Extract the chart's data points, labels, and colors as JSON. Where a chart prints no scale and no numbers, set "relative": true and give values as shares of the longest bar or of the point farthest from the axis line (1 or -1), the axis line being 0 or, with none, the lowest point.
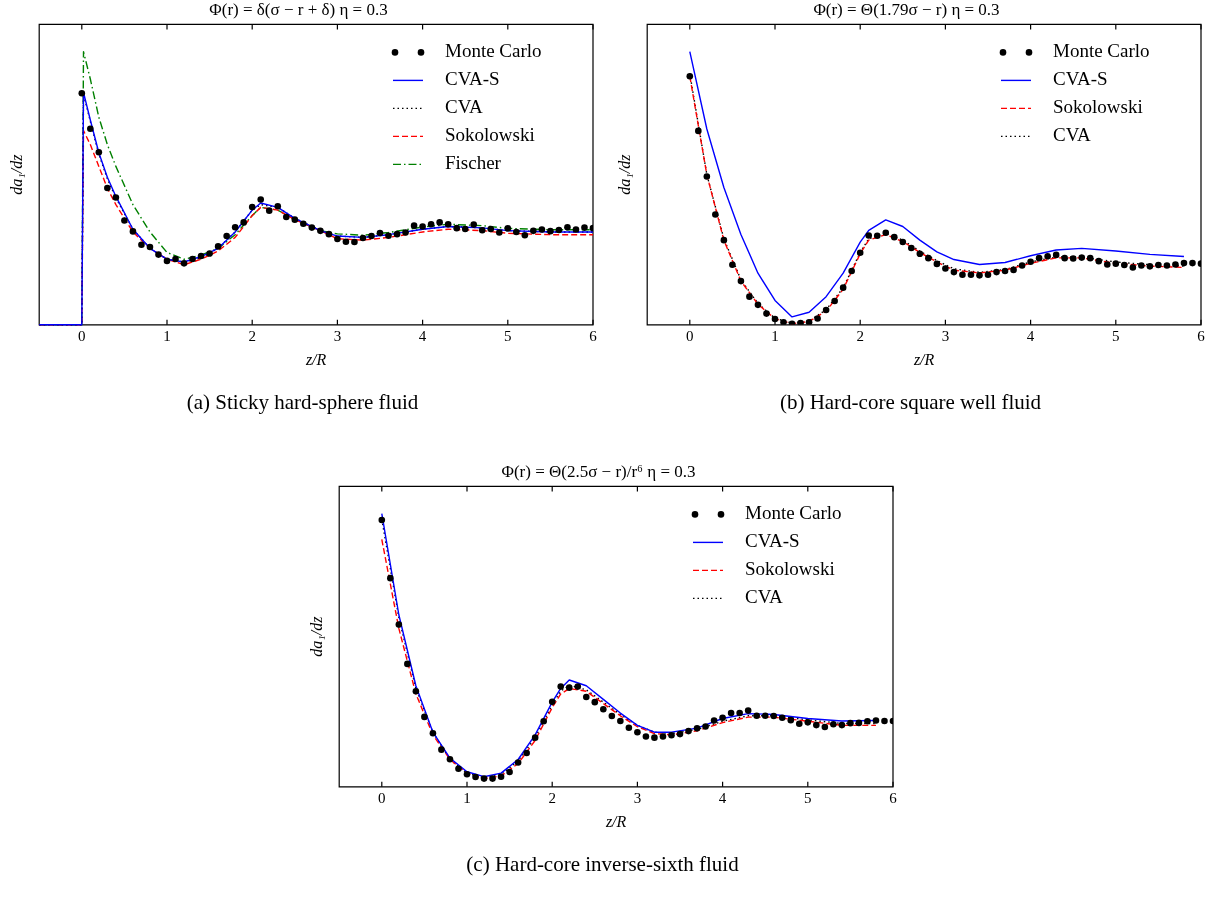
{
  "chart_data": [
    {
      "type": "line",
      "title": "Φ(r) = δ(σ − r + δ) η = 0.3",
      "xlabel": "z/R",
      "ylabel": "da₁/dz",
      "annotations": [
        "(a) Sticky hard-sphere fluid"
      ],
      "relative": true,
      "xlim": [
        -0.5,
        6
      ],
      "xticks": [
        0,
        1,
        2,
        3,
        4,
        5,
        6
      ],
      "legend": "top right",
      "series": [
        {
          "name": "Monte Carlo",
          "type": "scatter",
          "marker": "circle",
          "color": "#000000",
          "x": [
            0,
            0.1,
            0.2,
            0.3,
            0.4,
            0.5,
            0.6,
            0.7,
            0.8,
            0.9,
            1,
            1.1,
            1.2,
            1.3,
            1.4,
            1.5,
            1.6,
            1.7,
            1.8,
            1.9,
            2,
            2.1,
            2.2,
            2.3,
            2.4,
            2.5,
            2.6,
            2.7,
            2.8,
            2.9,
            3,
            3.1,
            3.2,
            3.3,
            3.4,
            3.5,
            3.6,
            3.7,
            3.8,
            3.9,
            4,
            4.1,
            4.2,
            4.3,
            4.4,
            4.5,
            4.6,
            4.7,
            4.8,
            4.9,
            5,
            5.1,
            5.2,
            5.3,
            5.4,
            5.5,
            5.6,
            5.7,
            5.8,
            5.9,
            6
          ],
          "values": [
            0.848,
            0.718,
            0.632,
            0.501,
            0.466,
            0.382,
            0.342,
            0.293,
            0.285,
            0.257,
            0.234,
            0.241,
            0.225,
            0.241,
            0.252,
            0.261,
            0.287,
            0.325,
            0.357,
            0.375,
            0.431,
            0.459,
            0.418,
            0.434,
            0.395,
            0.385,
            0.37,
            0.356,
            0.344,
            0.332,
            0.314,
            0.304,
            0.303,
            0.318,
            0.325,
            0.336,
            0.326,
            0.332,
            0.338,
            0.363,
            0.36,
            0.368,
            0.375,
            0.368,
            0.354,
            0.351,
            0.367,
            0.346,
            0.351,
            0.338,
            0.353,
            0.34,
            0.328,
            0.344,
            0.349,
            0.343,
            0.347,
            0.357,
            0.349,
            0.356,
            0.354
          ]
        },
        {
          "name": "CVA-S",
          "line_style": "solid",
          "color": "#0000ff",
          "x": [
            -0.5,
            0,
            0.02,
            0.1,
            0.2,
            0.3,
            0.4,
            0.6,
            0.8,
            1,
            1.2,
            1.4,
            1.6,
            1.8,
            2,
            2.1,
            2.3,
            2.5,
            2.8,
            3,
            3.3,
            3.6,
            4,
            4.3,
            4.7,
            5,
            5.5,
            6
          ],
          "values": [
            0,
            0,
            0.851,
            0.75,
            0.63,
            0.54,
            0.47,
            0.35,
            0.28,
            0.24,
            0.23,
            0.25,
            0.28,
            0.34,
            0.42,
            0.446,
            0.43,
            0.39,
            0.345,
            0.325,
            0.32,
            0.33,
            0.35,
            0.36,
            0.355,
            0.345,
            0.34,
            0.34
          ]
        },
        {
          "name": "CVA",
          "line_style": "dotted",
          "color": "#000000",
          "x": [
            -0.5,
            0,
            0.02,
            0.1,
            0.2,
            0.3,
            0.4,
            0.6,
            0.8,
            1,
            1.2,
            1.4,
            1.6,
            1.8,
            2,
            2.1,
            2.3,
            2.5,
            2.8,
            3,
            3.3,
            3.6,
            4,
            4.3,
            4.7,
            5,
            5.5,
            6
          ],
          "values": [
            0,
            0,
            0.845,
            0.745,
            0.625,
            0.535,
            0.465,
            0.35,
            0.28,
            0.24,
            0.23,
            0.245,
            0.28,
            0.34,
            0.42,
            0.44,
            0.43,
            0.39,
            0.345,
            0.325,
            0.32,
            0.33,
            0.35,
            0.36,
            0.355,
            0.345,
            0.34,
            0.34
          ]
        },
        {
          "name": "Sokolowski",
          "line_style": "dashed",
          "color": "#ff0000",
          "x": [
            -0.5,
            0,
            0.02,
            0.1,
            0.2,
            0.3,
            0.4,
            0.6,
            0.8,
            1,
            1.2,
            1.4,
            1.6,
            1.8,
            2,
            2.1,
            2.3,
            2.5,
            2.8,
            3,
            3.3,
            3.6,
            4,
            4.3,
            4.7,
            5,
            5.5,
            6
          ],
          "values": [
            0,
            0,
            0.711,
            0.66,
            0.58,
            0.5,
            0.44,
            0.34,
            0.28,
            0.24,
            0.22,
            0.24,
            0.27,
            0.32,
            0.4,
            0.43,
            0.42,
            0.385,
            0.345,
            0.315,
            0.31,
            0.32,
            0.34,
            0.35,
            0.345,
            0.335,
            0.33,
            0.33
          ]
        },
        {
          "name": "Fischer",
          "line_style": "dashdot",
          "color": "#008000",
          "x": [
            -0.5,
            0,
            0.02,
            0.1,
            0.2,
            0.3,
            0.4,
            0.6,
            0.8,
            1,
            1.2,
            1.4,
            1.6,
            1.8,
            2,
            2.1,
            2.3,
            2.5,
            2.8,
            3,
            3.3,
            3.6,
            4,
            4.3,
            4.7,
            5,
            5.5,
            6
          ],
          "values": [
            0,
            0,
            1,
            0.9,
            0.76,
            0.66,
            0.58,
            0.44,
            0.34,
            0.265,
            0.24,
            0.255,
            0.28,
            0.33,
            0.4,
            0.43,
            0.42,
            0.385,
            0.345,
            0.333,
            0.328,
            0.338,
            0.358,
            0.368,
            0.363,
            0.353,
            0.348,
            0.348
          ]
        }
      ]
    },
    {
      "type": "line",
      "title": "Φ(r) = Θ(1.79σ − r) η = 0.3",
      "xlabel": "z/R",
      "ylabel": "da₁/dz",
      "annotations": [
        "(b) Hard-core square well fluid"
      ],
      "relative": true,
      "xlim": [
        -0.5,
        6
      ],
      "xticks": [
        0,
        1,
        2,
        3,
        4,
        5,
        6
      ],
      "legend": "top right",
      "series": [
        {
          "name": "Monte Carlo",
          "type": "scatter",
          "marker": "circle",
          "color": "#000000",
          "x": [
            0,
            0.1,
            0.2,
            0.3,
            0.4,
            0.5,
            0.6,
            0.7,
            0.8,
            0.9,
            1,
            1.1,
            1.2,
            1.3,
            1.4,
            1.5,
            1.6,
            1.7,
            1.8,
            1.9,
            2,
            2.1,
            2.2,
            2.3,
            2.4,
            2.5,
            2.6,
            2.7,
            2.8,
            2.9,
            3,
            3.1,
            3.2,
            3.3,
            3.4,
            3.5,
            3.6,
            3.7,
            3.8,
            3.9,
            4,
            4.1,
            4.2,
            4.3,
            4.4,
            4.5,
            4.6,
            4.7,
            4.8,
            4.9,
            5,
            5.1,
            5.2,
            5.3,
            5.4,
            5.5,
            5.6,
            5.7,
            5.8,
            5.9,
            6
          ],
          "values": [
            0.91,
            0.71,
            0.543,
            0.404,
            0.31,
            0.22,
            0.16,
            0.103,
            0.073,
            0.041,
            0.021,
            0.009,
            0.004,
            0.006,
            0.009,
            0.023,
            0.054,
            0.087,
            0.136,
            0.197,
            0.264,
            0.327,
            0.326,
            0.337,
            0.321,
            0.303,
            0.281,
            0.26,
            0.244,
            0.223,
            0.206,
            0.193,
            0.183,
            0.183,
            0.181,
            0.183,
            0.193,
            0.197,
            0.201,
            0.217,
            0.231,
            0.244,
            0.251,
            0.256,
            0.244,
            0.243,
            0.246,
            0.244,
            0.233,
            0.221,
            0.224,
            0.219,
            0.21,
            0.217,
            0.214,
            0.219,
            0.217,
            0.221,
            0.226,
            0.226,
            0.224
          ]
        },
        {
          "name": "CVA-S",
          "line_style": "solid",
          "color": "#0000ff",
          "x": [
            0,
            0.2,
            0.4,
            0.6,
            0.8,
            1,
            1.2,
            1.4,
            1.6,
            1.8,
            2,
            2.1,
            2.3,
            2.5,
            2.7,
            2.9,
            3.1,
            3.4,
            3.7,
            4,
            4.3,
            4.6,
            5,
            5.4,
            5.8
          ],
          "values": [
            1,
            0.717,
            0.503,
            0.331,
            0.189,
            0.089,
            0.029,
            0.046,
            0.103,
            0.189,
            0.303,
            0.346,
            0.384,
            0.36,
            0.31,
            0.267,
            0.239,
            0.221,
            0.228,
            0.253,
            0.274,
            0.28,
            0.27,
            0.258,
            0.25
          ]
        },
        {
          "name": "Sokolowski",
          "line_style": "dashed",
          "color": "#ff0000",
          "x": [
            0,
            0.2,
            0.4,
            0.6,
            0.8,
            1,
            1.2,
            1.4,
            1.6,
            1.8,
            2,
            2.1,
            2.3,
            2.5,
            2.7,
            2.9,
            3.1,
            3.4,
            3.7,
            4,
            4.3,
            4.6,
            5,
            5.4,
            5.8
          ],
          "values": [
            0.91,
            0.55,
            0.31,
            0.16,
            0.075,
            0.022,
            0.004,
            0.012,
            0.05,
            0.13,
            0.26,
            0.31,
            0.33,
            0.305,
            0.265,
            0.23,
            0.2,
            0.19,
            0.2,
            0.225,
            0.245,
            0.245,
            0.225,
            0.215,
            0.21
          ]
        },
        {
          "name": "CVA",
          "line_style": "dotted",
          "color": "#000000",
          "x": [
            0,
            0.2,
            0.4,
            0.6,
            0.8,
            1,
            1.2,
            1.4,
            1.6,
            1.8,
            2,
            2.1,
            2.3,
            2.5,
            2.7,
            2.9,
            3.1,
            3.4,
            3.7,
            4,
            4.3,
            4.6,
            5,
            5.4,
            5.8
          ],
          "values": [
            0.92,
            0.55,
            0.315,
            0.165,
            0.078,
            0.024,
            0.006,
            0.014,
            0.055,
            0.135,
            0.265,
            0.315,
            0.335,
            0.31,
            0.27,
            0.235,
            0.205,
            0.192,
            0.202,
            0.23,
            0.248,
            0.248,
            0.23,
            0.22,
            0.215
          ]
        }
      ]
    },
    {
      "type": "line",
      "title": "Φ(r) = Θ(2.5σ − r)/r⁶ η = 0.3",
      "xlabel": "z/R",
      "ylabel": "da₁/dz",
      "annotations": [
        "(c) Hard-core inverse-sixth fluid"
      ],
      "relative": true,
      "xlim": [
        -0.5,
        6
      ],
      "xticks": [
        0,
        1,
        2,
        3,
        4,
        5,
        6
      ],
      "legend": "top right",
      "series": [
        {
          "name": "Monte Carlo",
          "type": "scatter",
          "marker": "circle",
          "color": "#000000",
          "x": [
            0,
            0.1,
            0.2,
            0.3,
            0.4,
            0.5,
            0.6,
            0.7,
            0.8,
            0.9,
            1,
            1.1,
            1.2,
            1.3,
            1.4,
            1.5,
            1.6,
            1.7,
            1.8,
            1.9,
            2,
            2.1,
            2.2,
            2.3,
            2.4,
            2.5,
            2.6,
            2.7,
            2.8,
            2.9,
            3,
            3.1,
            3.2,
            3.3,
            3.4,
            3.5,
            3.6,
            3.7,
            3.8,
            3.9,
            4,
            4.1,
            4.2,
            4.3,
            4.4,
            4.5,
            4.6,
            4.7,
            4.8,
            4.9,
            5,
            5.1,
            5.2,
            5.3,
            5.4,
            5.5,
            5.6,
            5.7,
            5.8,
            5.9,
            6
          ],
          "values": [
            0.977,
            0.764,
            0.594,
            0.45,
            0.35,
            0.256,
            0.196,
            0.136,
            0.101,
            0.066,
            0.046,
            0.036,
            0.03,
            0.03,
            0.037,
            0.054,
            0.089,
            0.124,
            0.18,
            0.24,
            0.311,
            0.367,
            0.363,
            0.367,
            0.329,
            0.31,
            0.284,
            0.259,
            0.241,
            0.216,
            0.2,
            0.184,
            0.18,
            0.184,
            0.189,
            0.193,
            0.204,
            0.214,
            0.221,
            0.243,
            0.253,
            0.27,
            0.27,
            0.279,
            0.26,
            0.26,
            0.259,
            0.253,
            0.244,
            0.231,
            0.236,
            0.226,
            0.219,
            0.229,
            0.226,
            0.233,
            0.234,
            0.24,
            0.243,
            0.241,
            0.241
          ]
        },
        {
          "name": "CVA-S",
          "line_style": "solid",
          "color": "#0000ff",
          "x": [
            0,
            0.2,
            0.4,
            0.6,
            0.8,
            1,
            1.2,
            1.4,
            1.6,
            1.8,
            2,
            2.1,
            2.2,
            2.4,
            2.6,
            2.8,
            3,
            3.2,
            3.4,
            3.7,
            4,
            4.3,
            4.6,
            5,
            5.4,
            5.8
          ],
          "values": [
            1,
            0.63,
            0.37,
            0.2,
            0.105,
            0.055,
            0.037,
            0.05,
            0.1,
            0.19,
            0.31,
            0.36,
            0.391,
            0.37,
            0.32,
            0.27,
            0.225,
            0.2,
            0.2,
            0.215,
            0.25,
            0.268,
            0.265,
            0.25,
            0.241,
            0.243
          ]
        },
        {
          "name": "Sokolowski",
          "line_style": "dashed",
          "color": "#ff0000",
          "x": [
            0,
            0.2,
            0.4,
            0.6,
            0.8,
            1,
            1.2,
            1.4,
            1.6,
            1.8,
            2,
            2.1,
            2.2,
            2.4,
            2.6,
            2.8,
            3,
            3.2,
            3.4,
            3.7,
            4,
            4.3,
            4.6,
            5,
            5.4,
            5.8
          ],
          "values": [
            0.906,
            0.58,
            0.34,
            0.19,
            0.1,
            0.05,
            0.03,
            0.04,
            0.085,
            0.17,
            0.29,
            0.34,
            0.36,
            0.35,
            0.305,
            0.26,
            0.22,
            0.195,
            0.19,
            0.205,
            0.235,
            0.255,
            0.255,
            0.24,
            0.225,
            0.225
          ]
        },
        {
          "name": "CVA",
          "line_style": "dotted",
          "color": "#000000",
          "x": [
            0,
            0.2,
            0.4,
            0.6,
            0.8,
            1,
            1.2,
            1.4,
            1.6,
            1.8,
            2,
            2.1,
            2.2,
            2.4,
            2.6,
            2.8,
            3,
            3.2,
            3.4,
            3.7,
            4,
            4.3,
            4.6,
            5,
            5.4,
            5.8
          ],
          "values": [
            0.98,
            0.62,
            0.36,
            0.2,
            0.1,
            0.05,
            0.033,
            0.045,
            0.095,
            0.18,
            0.3,
            0.35,
            0.372,
            0.355,
            0.31,
            0.265,
            0.225,
            0.2,
            0.195,
            0.21,
            0.24,
            0.26,
            0.26,
            0.245,
            0.232,
            0.232
          ]
        }
      ]
    }
  ]
}
